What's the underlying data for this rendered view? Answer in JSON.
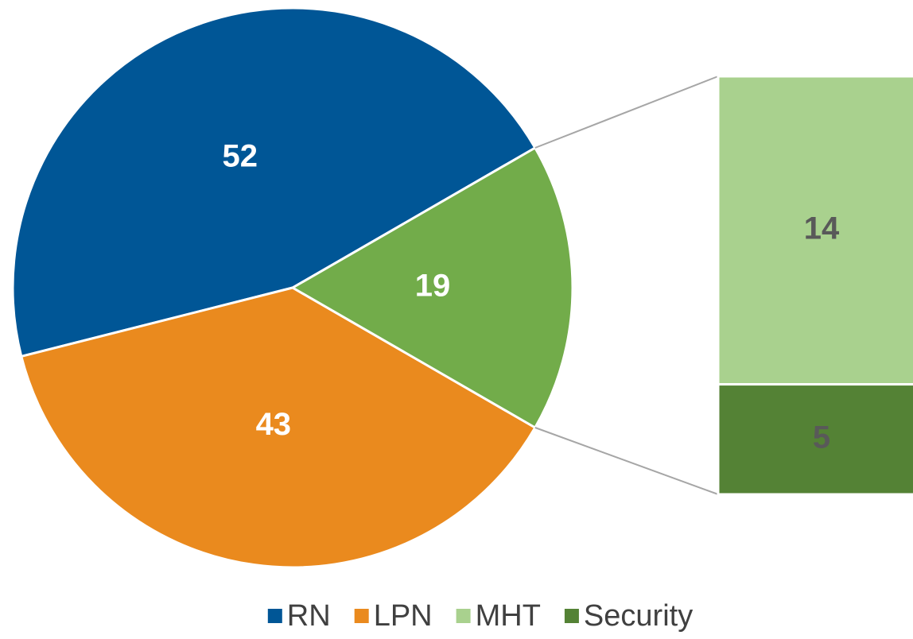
{
  "chart_data": {
    "type": "pie-of-bar",
    "categories": [
      "RN",
      "LPN",
      null
    ],
    "values": [
      52,
      43,
      19
    ],
    "colors": [
      "#005696",
      "#ea8a1e",
      "#72ac4a"
    ],
    "breakdown": {
      "categories": [
        "MHT",
        "Security"
      ],
      "values": [
        14,
        5
      ],
      "colors": [
        "#a9d18e",
        "#548235"
      ]
    }
  }
}
